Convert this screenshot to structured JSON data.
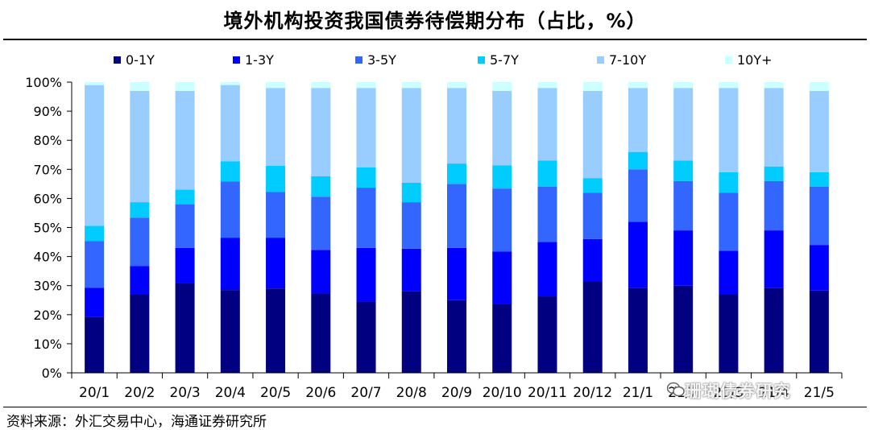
{
  "title": "境外机构投资我国债券待偿期分布（占比，%）",
  "source": "资料来源：外汇交易中心，海通证券研究所",
  "watermark": "珊瑚债券研究",
  "colors": {
    "0-1Y": "#000080",
    "1-3Y": "#0000FF",
    "3-5Y": "#3366FF",
    "5-7Y": "#00CCFF",
    "7-10Y": "#99CCFF",
    "10Y+": "#CCFFFF"
  },
  "chart_data": {
    "type": "bar",
    "stacked": true,
    "categories": [
      "20/1",
      "20/2",
      "20/3",
      "20/4",
      "20/5",
      "20/6",
      "20/7",
      "20/8",
      "20/9",
      "20/10",
      "20/11",
      "20/12",
      "21/1",
      "21/2",
      "21/3",
      "21/4",
      "21/5"
    ],
    "series": [
      {
        "name": "0-1Y",
        "values": [
          19.3,
          27,
          31,
          28.5,
          29,
          27.3,
          24.5,
          28,
          25,
          23.7,
          26.3,
          31.3,
          29.3,
          30,
          27,
          29.3,
          28.3
        ]
      },
      {
        "name": "1-3Y",
        "values": [
          10,
          9.7,
          12,
          18,
          17.5,
          15,
          18.5,
          14.7,
          18,
          18,
          18.7,
          14.7,
          22.7,
          19,
          15,
          19.7,
          15.7
        ]
      },
      {
        "name": "3-5Y",
        "values": [
          16,
          16.7,
          15,
          19.3,
          15.7,
          18.3,
          20.7,
          16,
          22,
          21.7,
          19,
          16,
          18,
          17,
          20,
          17,
          20
        ]
      },
      {
        "name": "5-7Y",
        "values": [
          5.3,
          5.3,
          5,
          7,
          9,
          7,
          7,
          6.7,
          7,
          8,
          9,
          5,
          6,
          7,
          7,
          5,
          5
        ]
      },
      {
        "name": "7-10Y",
        "values": [
          48.4,
          38.3,
          34,
          26.2,
          26.8,
          30.4,
          27.3,
          32.6,
          26,
          25.6,
          25,
          30,
          22,
          25,
          29,
          27,
          28
        ]
      },
      {
        "name": "10Y+",
        "values": [
          1,
          3,
          3,
          1,
          2,
          2,
          2,
          2,
          2,
          3,
          2,
          3,
          2,
          2,
          2,
          2,
          3
        ]
      }
    ],
    "y_ticks": [
      "0%",
      "10%",
      "20%",
      "30%",
      "40%",
      "50%",
      "60%",
      "70%",
      "80%",
      "90%",
      "100%"
    ],
    "ylim": [
      0,
      100
    ],
    "legend_position": "top",
    "grid": false
  }
}
